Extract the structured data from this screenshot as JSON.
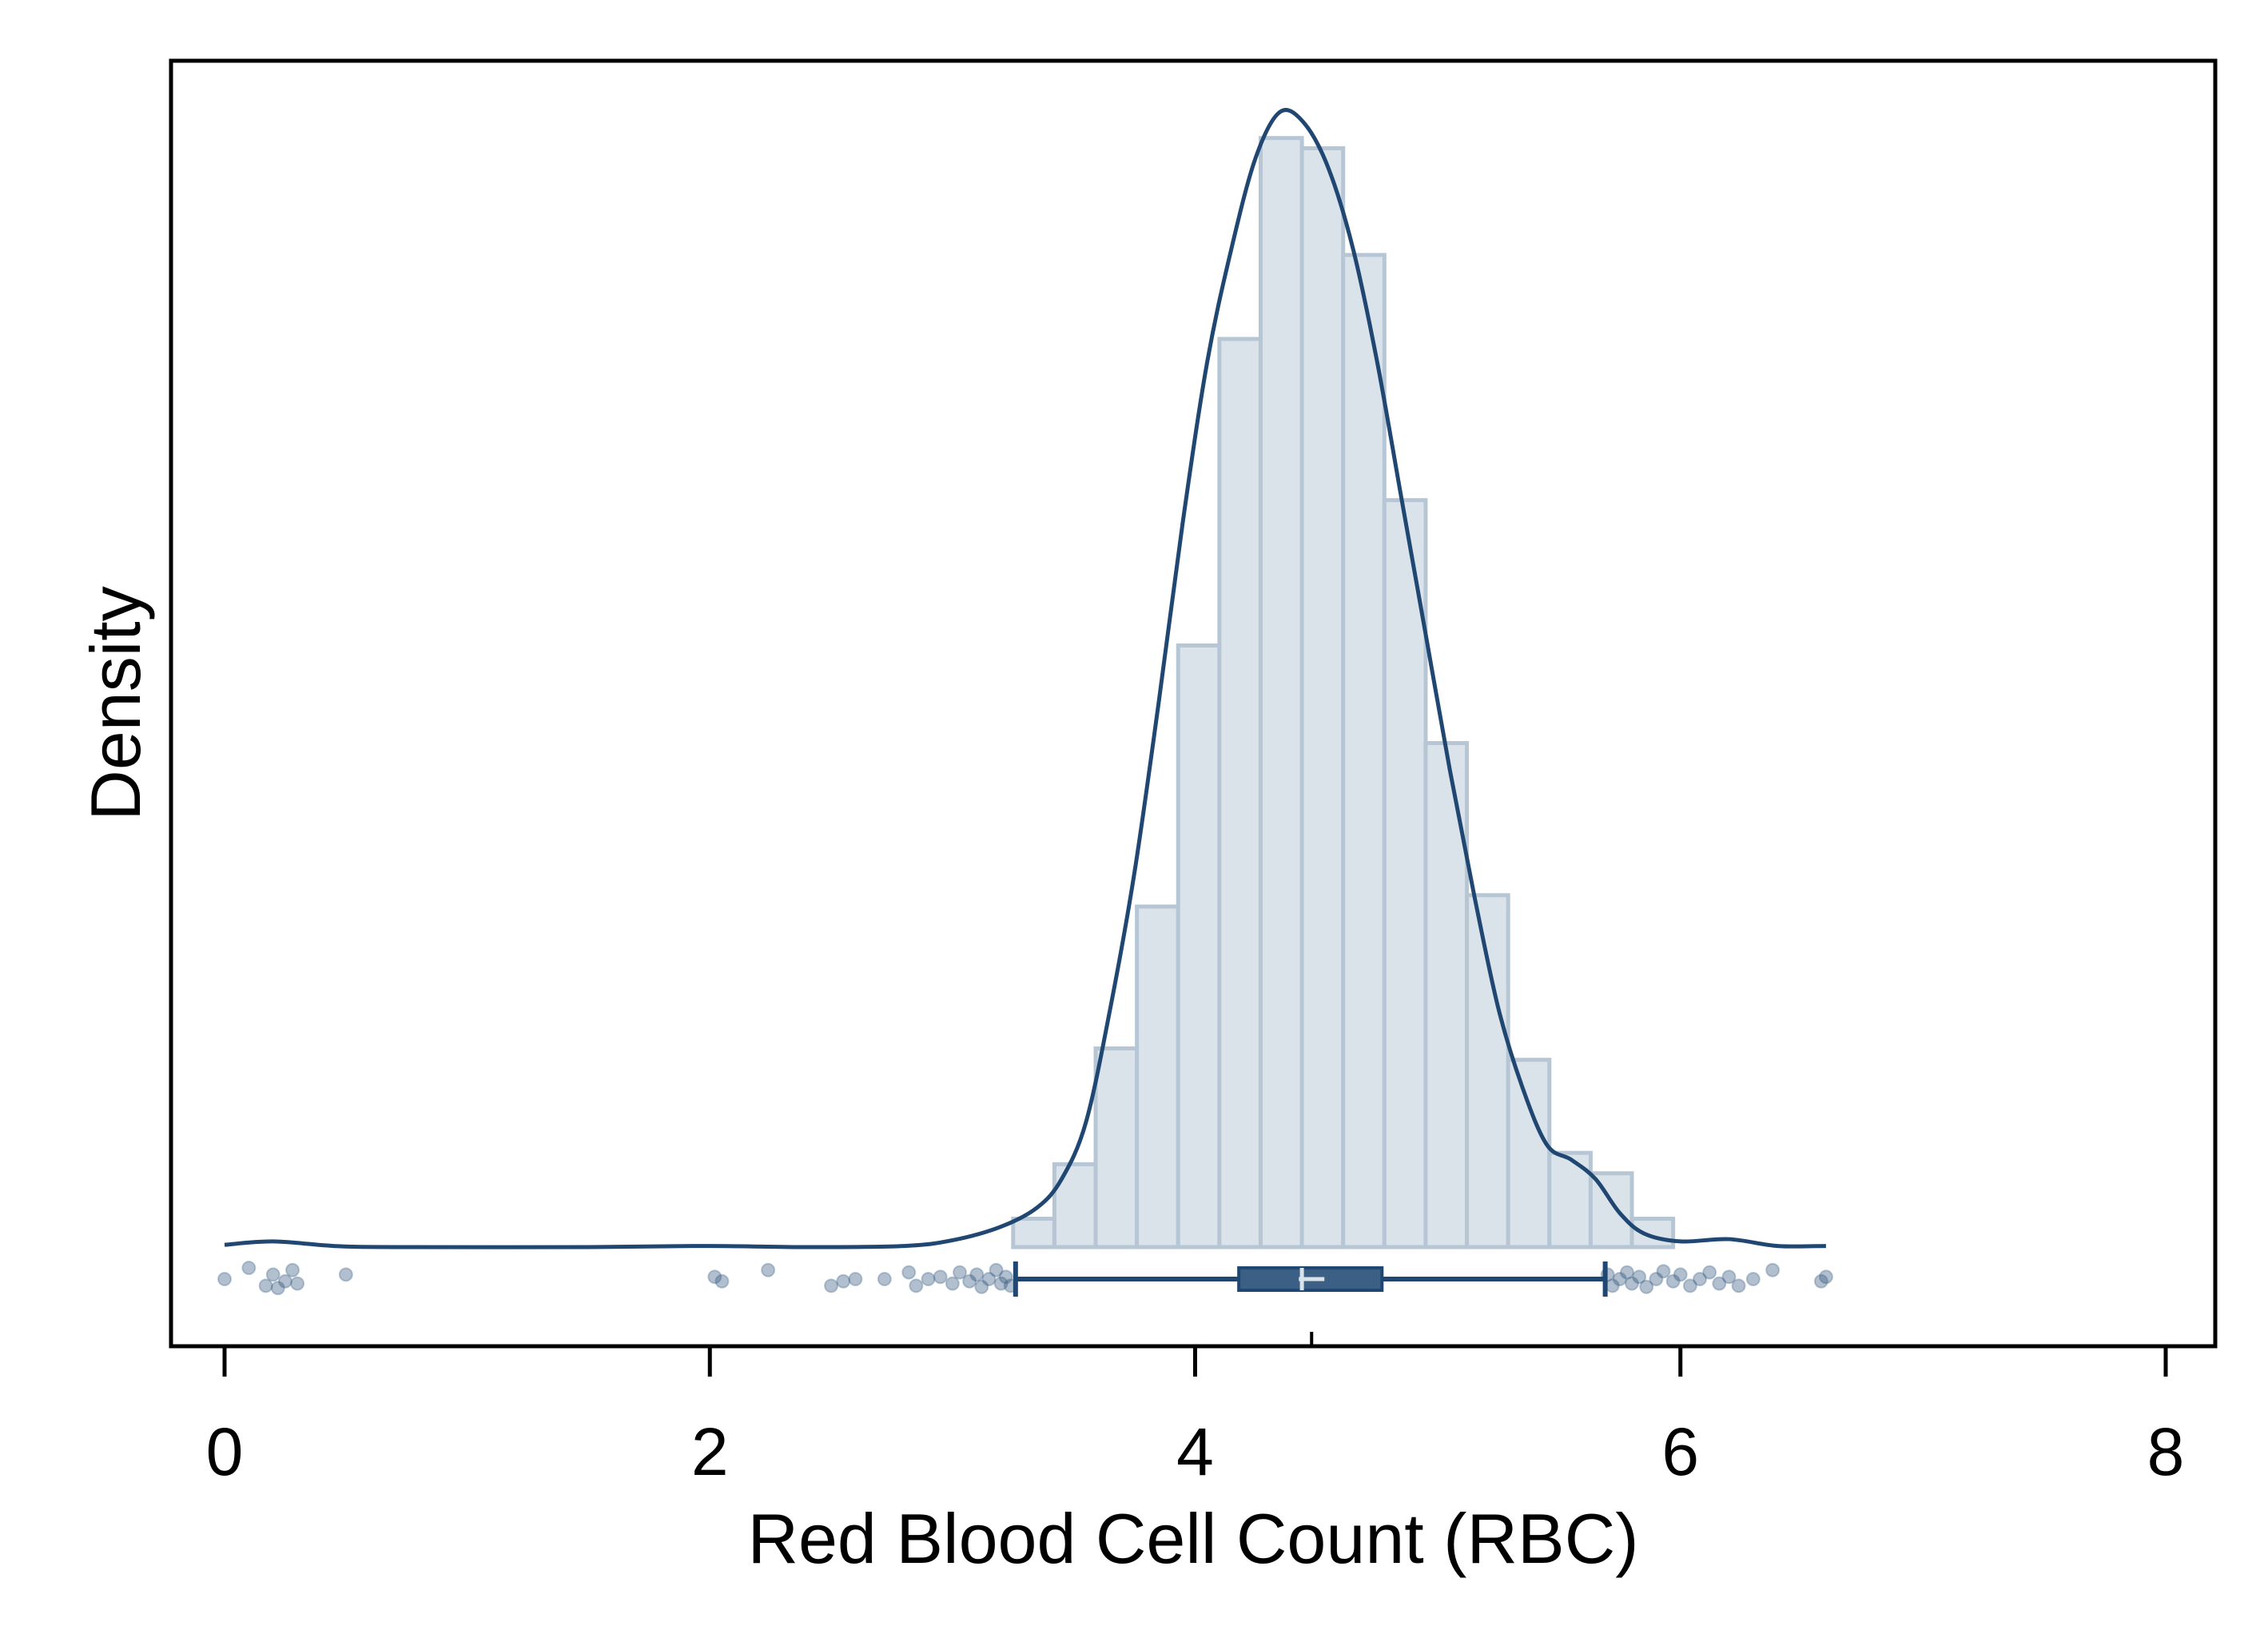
{
  "chart_data": {
    "type": "histogram",
    "xlabel": "Red Blood Cell Count (RBC)",
    "ylabel": "Density",
    "xlim": [
      -0.2,
      8.2
    ],
    "xticks": [
      {
        "value": 0,
        "label": "0"
      },
      {
        "value": 2,
        "label": "2"
      },
      {
        "value": 4,
        "label": "4"
      },
      {
        "value": 6,
        "label": "6"
      },
      {
        "value": 8,
        "label": "8"
      }
    ],
    "grid": false,
    "colors": {
      "bar_fill": "#dbe3ea",
      "bar_edge": "#b7c6d4",
      "line": "#1f4771",
      "box_fill": "#3c5f85",
      "median": "#dbe3ea",
      "points": "#3c5f85"
    },
    "histogram": {
      "bin_width": 0.17,
      "bins": [
        {
          "x0": 3.25,
          "density": 0.025
        },
        {
          "x0": 3.42,
          "density": 0.073
        },
        {
          "x0": 3.59,
          "density": 0.175
        },
        {
          "x0": 3.76,
          "density": 0.3
        },
        {
          "x0": 3.93,
          "density": 0.53
        },
        {
          "x0": 4.1,
          "density": 0.8
        },
        {
          "x0": 4.27,
          "density": 0.977
        },
        {
          "x0": 4.44,
          "density": 0.968
        },
        {
          "x0": 4.61,
          "density": 0.874
        },
        {
          "x0": 4.78,
          "density": 0.658
        },
        {
          "x0": 4.95,
          "density": 0.444
        },
        {
          "x0": 5.12,
          "density": 0.31
        },
        {
          "x0": 5.29,
          "density": 0.165
        },
        {
          "x0": 5.46,
          "density": 0.083
        },
        {
          "x0": 5.63,
          "density": 0.065
        },
        {
          "x0": 5.8,
          "density": 0.025
        }
      ]
    },
    "density_curve": [
      {
        "x": 0.0,
        "y": 0.002
      },
      {
        "x": 0.2,
        "y": 0.005
      },
      {
        "x": 0.45,
        "y": 0.001
      },
      {
        "x": 0.7,
        "y": 0.0
      },
      {
        "x": 1.5,
        "y": 0.0
      },
      {
        "x": 2.0,
        "y": 0.001
      },
      {
        "x": 2.4,
        "y": 0.0
      },
      {
        "x": 2.8,
        "y": 0.001
      },
      {
        "x": 3.0,
        "y": 0.006
      },
      {
        "x": 3.2,
        "y": 0.018
      },
      {
        "x": 3.35,
        "y": 0.035
      },
      {
        "x": 3.45,
        "y": 0.06
      },
      {
        "x": 3.55,
        "y": 0.11
      },
      {
        "x": 3.65,
        "y": 0.21
      },
      {
        "x": 3.75,
        "y": 0.33
      },
      {
        "x": 3.85,
        "y": 0.48
      },
      {
        "x": 3.95,
        "y": 0.64
      },
      {
        "x": 4.05,
        "y": 0.78
      },
      {
        "x": 4.15,
        "y": 0.88
      },
      {
        "x": 4.25,
        "y": 0.96
      },
      {
        "x": 4.35,
        "y": 1.0
      },
      {
        "x": 4.45,
        "y": 0.99
      },
      {
        "x": 4.55,
        "y": 0.95
      },
      {
        "x": 4.65,
        "y": 0.88
      },
      {
        "x": 4.75,
        "y": 0.78
      },
      {
        "x": 4.85,
        "y": 0.66
      },
      {
        "x": 4.95,
        "y": 0.54
      },
      {
        "x": 5.05,
        "y": 0.42
      },
      {
        "x": 5.15,
        "y": 0.31
      },
      {
        "x": 5.25,
        "y": 0.21
      },
      {
        "x": 5.35,
        "y": 0.14
      },
      {
        "x": 5.45,
        "y": 0.09
      },
      {
        "x": 5.55,
        "y": 0.077
      },
      {
        "x": 5.65,
        "y": 0.06
      },
      {
        "x": 5.75,
        "y": 0.03
      },
      {
        "x": 5.85,
        "y": 0.012
      },
      {
        "x": 6.0,
        "y": 0.005
      },
      {
        "x": 6.2,
        "y": 0.007
      },
      {
        "x": 6.4,
        "y": 0.001
      },
      {
        "x": 6.6,
        "y": 0.001
      }
    ],
    "boxplot": {
      "whisker_low": 3.26,
      "q1": 4.18,
      "median": 4.44,
      "mean": 4.48,
      "q3": 4.77,
      "whisker_high": 5.69
    },
    "jitter_points": [
      {
        "x": 0.0,
        "j": 0.0
      },
      {
        "x": 0.1,
        "j": -0.5
      },
      {
        "x": 0.17,
        "j": 0.3
      },
      {
        "x": 0.2,
        "j": -0.2
      },
      {
        "x": 0.22,
        "j": 0.4
      },
      {
        "x": 0.25,
        "j": 0.1
      },
      {
        "x": 0.28,
        "j": -0.4
      },
      {
        "x": 0.3,
        "j": 0.2
      },
      {
        "x": 0.5,
        "j": -0.2
      },
      {
        "x": 2.02,
        "j": -0.1
      },
      {
        "x": 2.05,
        "j": 0.1
      },
      {
        "x": 2.24,
        "j": -0.4
      },
      {
        "x": 2.5,
        "j": 0.3
      },
      {
        "x": 2.55,
        "j": 0.1
      },
      {
        "x": 2.6,
        "j": 0.0
      },
      {
        "x": 2.72,
        "j": 0.0
      },
      {
        "x": 2.82,
        "j": -0.3
      },
      {
        "x": 2.85,
        "j": 0.3
      },
      {
        "x": 2.9,
        "j": 0.0
      },
      {
        "x": 2.95,
        "j": -0.1
      },
      {
        "x": 3.0,
        "j": 0.2
      },
      {
        "x": 3.03,
        "j": -0.3
      },
      {
        "x": 3.07,
        "j": 0.1
      },
      {
        "x": 3.1,
        "j": -0.2
      },
      {
        "x": 3.12,
        "j": 0.35
      },
      {
        "x": 3.15,
        "j": 0.0
      },
      {
        "x": 3.18,
        "j": -0.4
      },
      {
        "x": 3.2,
        "j": 0.2
      },
      {
        "x": 3.22,
        "j": -0.1
      },
      {
        "x": 3.24,
        "j": 0.3
      },
      {
        "x": 5.7,
        "j": -0.2
      },
      {
        "x": 5.72,
        "j": 0.3
      },
      {
        "x": 5.75,
        "j": 0.0
      },
      {
        "x": 5.78,
        "j": -0.3
      },
      {
        "x": 5.8,
        "j": 0.2
      },
      {
        "x": 5.83,
        "j": -0.1
      },
      {
        "x": 5.86,
        "j": 0.35
      },
      {
        "x": 5.9,
        "j": 0.0
      },
      {
        "x": 5.93,
        "j": -0.35
      },
      {
        "x": 5.97,
        "j": 0.1
      },
      {
        "x": 6.0,
        "j": -0.2
      },
      {
        "x": 6.04,
        "j": 0.3
      },
      {
        "x": 6.08,
        "j": 0.0
      },
      {
        "x": 6.12,
        "j": -0.3
      },
      {
        "x": 6.16,
        "j": 0.2
      },
      {
        "x": 6.2,
        "j": -0.1
      },
      {
        "x": 6.24,
        "j": 0.3
      },
      {
        "x": 6.3,
        "j": 0.0
      },
      {
        "x": 6.38,
        "j": -0.4
      },
      {
        "x": 6.58,
        "j": 0.1
      },
      {
        "x": 6.6,
        "j": -0.1
      }
    ]
  }
}
